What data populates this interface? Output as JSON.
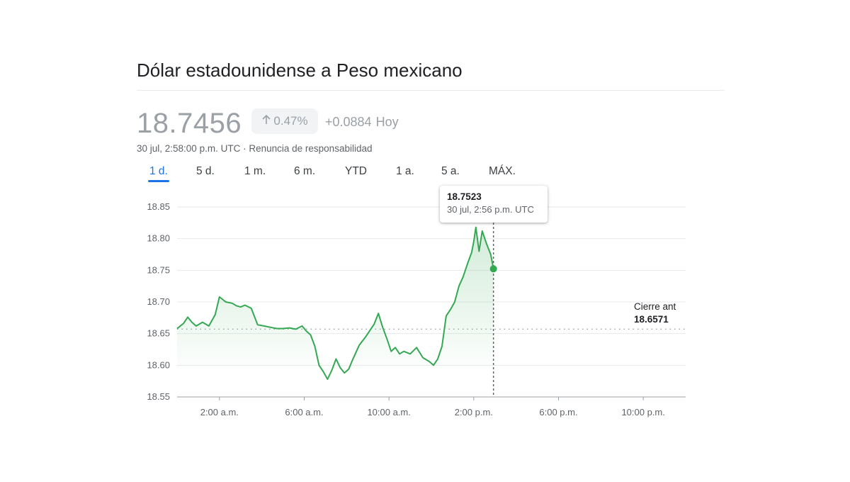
{
  "title": "Dólar estadounidense a Peso mexicano",
  "quote": {
    "price": "18.7456",
    "percent_change": "0.47%",
    "abs_change": "+0.0884",
    "period_label": "Hoy",
    "timestamp": "30 jul, 2:58:00 p.m. UTC",
    "separator": "·",
    "disclaimer": "Renuncia de responsabilidad"
  },
  "tabs": [
    {
      "label": "1 d.",
      "active": true
    },
    {
      "label": "5 d.",
      "active": false
    },
    {
      "label": "1 m.",
      "active": false
    },
    {
      "label": "6 m.",
      "active": false
    },
    {
      "label": "YTD",
      "active": false
    },
    {
      "label": "1 a.",
      "active": false
    },
    {
      "label": "5 a.",
      "active": false
    },
    {
      "label": "MÁX.",
      "active": false
    }
  ],
  "tooltip": {
    "value": "18.7523",
    "time": "30 jul, 2:56 p.m. UTC"
  },
  "previous_close": {
    "label": "Cierre ant",
    "value": "18.6571"
  },
  "colors": {
    "line": "#34a853",
    "fill": "#34a853",
    "grid": "#e8eaed",
    "accent": "#1a73e8"
  },
  "chart_data": {
    "type": "area",
    "title": "",
    "xlabel": "",
    "ylabel": "",
    "x_unit": "hours",
    "x_range": [
      0,
      24
    ],
    "ylim": [
      18.55,
      18.85
    ],
    "yticks": [
      18.85,
      18.8,
      18.75,
      18.7,
      18.65,
      18.6,
      18.55
    ],
    "ytick_labels": [
      "18.85",
      "18.80",
      "18.75",
      "18.70",
      "18.65",
      "18.60",
      "18.55"
    ],
    "xticks": [
      2,
      6,
      10,
      14,
      18,
      22
    ],
    "xtick_labels": [
      "2:00 a.m.",
      "6:00 a.m.",
      "10:00 a.m.",
      "2:00 p.m.",
      "6:00 p.m.",
      "10:00 p.m."
    ],
    "reference_line": 18.6571,
    "hover_x": 14.93,
    "grid": true,
    "series": [
      {
        "x": [
          0.0,
          0.3,
          0.5,
          0.7,
          0.9,
          1.2,
          1.5,
          1.8,
          2.0,
          2.3,
          2.6,
          2.8,
          3.0,
          3.2,
          3.5,
          3.8,
          4.1,
          4.4,
          4.7,
          5.0,
          5.3,
          5.6,
          5.9,
          6.1,
          6.3,
          6.5,
          6.7,
          6.9,
          7.1,
          7.3,
          7.5,
          7.7,
          7.9,
          8.1,
          8.3,
          8.6,
          8.9,
          9.1,
          9.3,
          9.5,
          9.7,
          9.9,
          10.1,
          10.3,
          10.5,
          10.7,
          11.0,
          11.3,
          11.6,
          11.9,
          12.1,
          12.3,
          12.5,
          12.7,
          12.9,
          13.1,
          13.3,
          13.5,
          13.7,
          13.9,
          14.0,
          14.1,
          14.25,
          14.4,
          14.6,
          14.8,
          14.93
        ],
        "y": [
          18.658,
          18.666,
          18.676,
          18.668,
          18.662,
          18.668,
          18.662,
          18.68,
          18.708,
          18.7,
          18.698,
          18.694,
          18.692,
          18.695,
          18.69,
          18.664,
          18.662,
          18.66,
          18.658,
          18.658,
          18.659,
          18.657,
          18.662,
          18.654,
          18.648,
          18.63,
          18.6,
          18.59,
          18.578,
          18.592,
          18.61,
          18.596,
          18.588,
          18.594,
          18.61,
          18.632,
          18.645,
          18.655,
          18.665,
          18.682,
          18.66,
          18.642,
          18.622,
          18.628,
          18.618,
          18.622,
          18.618,
          18.628,
          18.612,
          18.606,
          18.6,
          18.61,
          18.63,
          18.678,
          18.688,
          18.7,
          18.725,
          18.74,
          18.76,
          18.778,
          18.795,
          18.818,
          18.78,
          18.812,
          18.792,
          18.775,
          18.7523
        ]
      }
    ]
  }
}
